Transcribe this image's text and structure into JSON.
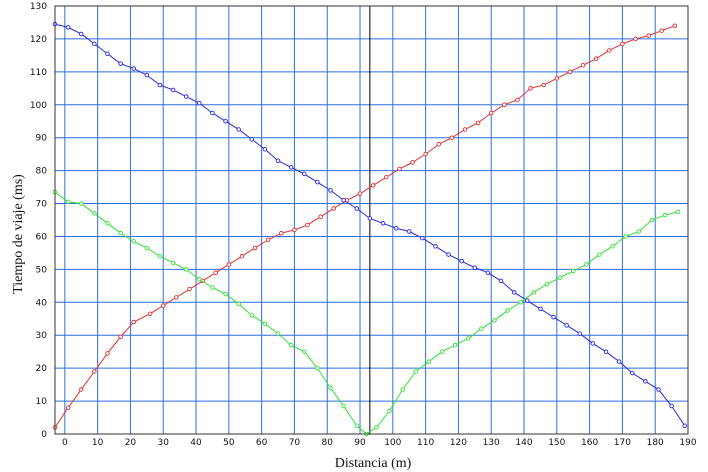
{
  "chart_data": {
    "type": "line",
    "xlabel": "Distancia (m)",
    "ylabel": "Tiempo de viaje (ms)",
    "xlim": [
      -3,
      190
    ],
    "ylim": [
      0,
      130
    ],
    "xticks": [
      0,
      10,
      20,
      30,
      40,
      50,
      60,
      70,
      80,
      90,
      100,
      110,
      120,
      130,
      140,
      150,
      160,
      170,
      180,
      190
    ],
    "yticks": [
      0,
      10,
      20,
      30,
      40,
      50,
      60,
      70,
      80,
      90,
      100,
      110,
      120,
      130
    ],
    "grid": true,
    "grid_color": "#2e6fe0",
    "vertical_marker": {
      "x": 93,
      "color": "#000000"
    },
    "series": [
      {
        "color": "#e03030",
        "points": [
          [
            -3,
            2
          ],
          [
            1,
            8
          ],
          [
            5,
            13.5
          ],
          [
            9,
            19
          ],
          [
            13,
            24.5
          ],
          [
            17,
            29.5
          ],
          [
            21,
            34
          ],
          [
            26,
            36.5
          ],
          [
            30,
            39
          ],
          [
            34,
            41.5
          ],
          [
            38,
            44
          ],
          [
            42,
            46.5
          ],
          [
            46,
            49
          ],
          [
            50,
            51.5
          ],
          [
            54,
            54
          ],
          [
            58,
            56.5
          ],
          [
            62,
            59
          ],
          [
            66,
            61
          ],
          [
            70,
            62
          ],
          [
            74,
            63.5
          ],
          [
            78,
            66
          ],
          [
            82,
            68.5
          ],
          [
            86,
            71
          ],
          [
            90,
            73
          ],
          [
            94,
            75.5
          ],
          [
            98,
            78
          ],
          [
            102,
            80.5
          ],
          [
            106,
            82.5
          ],
          [
            110,
            85
          ],
          [
            114,
            88
          ],
          [
            118,
            90
          ],
          [
            122,
            92.5
          ],
          [
            126,
            94.5
          ],
          [
            130,
            97.5
          ],
          [
            134,
            100
          ],
          [
            138,
            101.5
          ],
          [
            142,
            105
          ],
          [
            146,
            106
          ],
          [
            150,
            108
          ],
          [
            154,
            110
          ],
          [
            158,
            112
          ],
          [
            162,
            114
          ],
          [
            166,
            116.5
          ],
          [
            170,
            118.5
          ],
          [
            174,
            120
          ],
          [
            178,
            121
          ],
          [
            182,
            122.5
          ],
          [
            186,
            124
          ]
        ]
      },
      {
        "color": "#2828e0",
        "points": [
          [
            -3,
            124.5
          ],
          [
            1,
            123.5
          ],
          [
            5,
            121.5
          ],
          [
            9,
            118.5
          ],
          [
            13,
            115.5
          ],
          [
            17,
            112.5
          ],
          [
            21,
            111
          ],
          [
            25,
            109
          ],
          [
            29,
            106
          ],
          [
            33,
            104.5
          ],
          [
            37,
            102.5
          ],
          [
            41,
            100.5
          ],
          [
            45,
            97.5
          ],
          [
            49,
            95
          ],
          [
            53,
            92.5
          ],
          [
            57,
            89.5
          ],
          [
            61,
            86.5
          ],
          [
            65,
            83
          ],
          [
            69,
            81
          ],
          [
            73,
            79
          ],
          [
            77,
            76.5
          ],
          [
            81,
            74
          ],
          [
            85,
            71
          ],
          [
            89,
            68.5
          ],
          [
            93,
            65.5
          ],
          [
            97,
            64
          ],
          [
            101,
            62.5
          ],
          [
            105,
            61.5
          ],
          [
            109,
            59.5
          ],
          [
            113,
            57
          ],
          [
            117,
            54.5
          ],
          [
            121,
            52.5
          ],
          [
            125,
            50.5
          ],
          [
            129,
            49
          ],
          [
            133,
            46.5
          ],
          [
            137,
            43
          ],
          [
            141,
            40.5
          ],
          [
            145,
            38
          ],
          [
            149,
            35.5
          ],
          [
            153,
            33
          ],
          [
            157,
            30.5
          ],
          [
            161,
            27.5
          ],
          [
            165,
            25
          ],
          [
            169,
            22
          ],
          [
            173,
            18.5
          ],
          [
            177,
            16
          ],
          [
            181,
            13.5
          ],
          [
            185,
            8.5
          ],
          [
            189,
            2.5
          ]
        ]
      },
      {
        "color": "#33e033",
        "points": [
          [
            -3,
            73.5
          ],
          [
            1,
            70.5
          ],
          [
            5,
            70
          ],
          [
            9,
            67
          ],
          [
            13,
            64
          ],
          [
            17,
            61
          ],
          [
            21,
            58.5
          ],
          [
            25,
            56.5
          ],
          [
            29,
            54
          ],
          [
            33,
            52
          ],
          [
            37,
            50
          ],
          [
            41,
            47
          ],
          [
            45,
            44.5
          ],
          [
            49,
            42.5
          ],
          [
            53,
            39.5
          ],
          [
            57,
            36
          ],
          [
            61,
            33.5
          ],
          [
            65,
            30.5
          ],
          [
            69,
            27
          ],
          [
            73,
            25
          ],
          [
            77,
            20
          ],
          [
            81,
            14
          ],
          [
            85,
            8.5
          ],
          [
            89,
            2.5
          ],
          [
            92,
            0
          ],
          [
            95,
            2
          ],
          [
            99,
            7
          ],
          [
            103,
            13.5
          ],
          [
            107,
            19
          ],
          [
            111,
            22
          ],
          [
            115,
            25
          ],
          [
            119,
            27
          ],
          [
            123,
            29
          ],
          [
            127,
            32
          ],
          [
            131,
            34.5
          ],
          [
            135,
            37.5
          ],
          [
            139,
            40
          ],
          [
            143,
            43
          ],
          [
            147,
            45.5
          ],
          [
            151,
            47.5
          ],
          [
            155,
            49.5
          ],
          [
            159,
            51.5
          ],
          [
            163,
            54.5
          ],
          [
            167,
            57
          ],
          [
            171,
            60
          ],
          [
            175,
            61.5
          ],
          [
            179,
            65
          ],
          [
            183,
            66.5
          ],
          [
            187,
            67.5
          ]
        ]
      }
    ]
  }
}
